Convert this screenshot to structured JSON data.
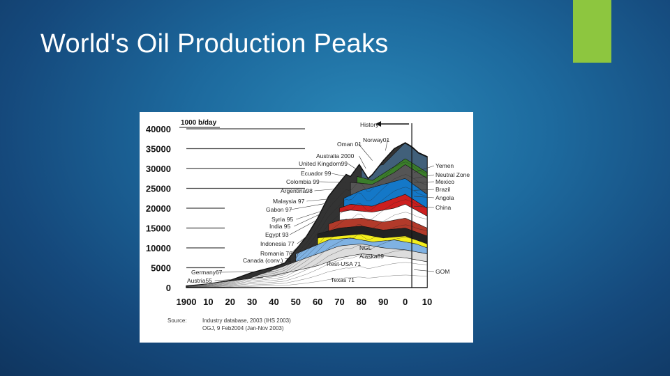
{
  "slide": {
    "title": "World's Oil Production Peaks",
    "accent_color": "#8dc63f"
  },
  "chart_data": {
    "type": "area",
    "ylabel": "1000 b/day",
    "ylim": [
      0,
      40000
    ],
    "yticks": [
      "0",
      "5000",
      "10000",
      "15000",
      "20000",
      "25000",
      "30000",
      "35000",
      "40000"
    ],
    "ytick_values": [
      0,
      5000,
      10000,
      15000,
      20000,
      25000,
      30000,
      35000,
      40000
    ],
    "xlim": [
      1900,
      2010
    ],
    "xticks": [
      "1900",
      "10",
      "20",
      "30",
      "40",
      "50",
      "60",
      "70",
      "80",
      "90",
      "0",
      "10"
    ],
    "xtick_values": [
      1900,
      1910,
      1920,
      1930,
      1940,
      1950,
      1960,
      1970,
      1980,
      1990,
      2000,
      2010
    ],
    "history_label": "History",
    "history_end": 2003,
    "total_x": [
      1900,
      1910,
      1920,
      1930,
      1940,
      1945,
      1950,
      1955,
      1960,
      1965,
      1970,
      1973,
      1975,
      1979,
      1983,
      1985,
      1990,
      1995,
      2000,
      2003,
      2006,
      2010
    ],
    "total_y": [
      400,
      900,
      1800,
      3800,
      5200,
      6200,
      9500,
      13000,
      17500,
      23000,
      26500,
      28500,
      28000,
      31000,
      27500,
      28500,
      32000,
      35000,
      36500,
      35500,
      34000,
      33000
    ],
    "layers": [
      {
        "x": [
          1900,
          1940,
          1960,
          1970,
          1980,
          1990,
          2000,
          2010
        ],
        "y": [
          300,
          3000,
          5500,
          7500,
          8500,
          8000,
          7500,
          6500
        ],
        "color": "#ffffff"
      },
      {
        "x": [
          1920,
          1950,
          1970,
          1980,
          1990,
          2000,
          2010
        ],
        "y": [
          600,
          6500,
          10500,
          11000,
          10000,
          9500,
          8500
        ],
        "color": "#dddddd"
      },
      {
        "x": [
          1950,
          1965,
          1975,
          1985,
          1995,
          2005,
          2010
        ],
        "y": [
          8500,
          12000,
          12500,
          11500,
          12000,
          11000,
          10000
        ],
        "color": "#7fb2e3"
      },
      {
        "x": [
          1960,
          1970,
          1980,
          1990,
          2000,
          2005,
          2010
        ],
        "y": [
          12500,
          13000,
          13500,
          12500,
          13000,
          12000,
          11000
        ],
        "color": "#f4ef1d"
      },
      {
        "x": [
          1960,
          1970,
          1980,
          1990,
          2000,
          2010
        ],
        "y": [
          13500,
          15000,
          15500,
          14500,
          15000,
          13000
        ],
        "color": "#222222"
      },
      {
        "x": [
          1965,
          1970,
          1980,
          1990,
          2000,
          2010
        ],
        "y": [
          16000,
          17000,
          17500,
          16500,
          17500,
          15000
        ],
        "color": "#b23a2a"
      },
      {
        "x": [
          1970,
          1975,
          1985,
          1995,
          2000,
          2010
        ],
        "y": [
          19000,
          19500,
          19000,
          20000,
          21000,
          18000
        ],
        "color": "#ffffff"
      },
      {
        "x": [
          1970,
          1975,
          1985,
          1995,
          2000,
          2010
        ],
        "y": [
          20000,
          21000,
          20500,
          22500,
          23500,
          20000
        ],
        "color": "#cc1f1f"
      },
      {
        "x": [
          1972,
          1980,
          1990,
          2000,
          2010
        ],
        "y": [
          22500,
          24500,
          26000,
          27500,
          23500
        ],
        "color": "#1478c8"
      },
      {
        "x": [
          1975,
          1985,
          1995,
          2000,
          2010
        ],
        "y": [
          26500,
          26000,
          29000,
          31000,
          27500
        ],
        "color": "#555555"
      },
      {
        "x": [
          1978,
          1985,
          1995,
          2000,
          2010
        ],
        "y": [
          28000,
          27000,
          30500,
          32500,
          29000
        ],
        "color": "#3a7d2a"
      },
      {
        "x": [
          1980,
          1990,
          2000,
          2010
        ],
        "y": [
          30000,
          31000,
          36500,
          33000
        ],
        "color": "#41607a"
      }
    ],
    "left_annotations": [
      "Oman 01",
      "Norway01",
      "Australia 2000",
      "United Kingdom99",
      "Ecuador 99",
      "Colombia 99",
      "Argentina98",
      "Malaysia 97",
      "Gabon 97",
      "Syria 95",
      "India 95",
      "Egypt 93",
      "Indonesia 77",
      "Romania 76",
      "Canada (conv.) 74",
      "Germany67",
      "Austria55"
    ],
    "center_annotations": [
      "NGL",
      "Alaska89",
      "Rest-USA 71",
      "Texas 71"
    ],
    "right_annotations": [
      "Yemen",
      "Neutral Zone",
      "Mexico",
      "Brazil",
      "Angola",
      "China",
      "GOM"
    ],
    "source_label": "Source:",
    "source_lines": [
      "Industry database, 2003 (IHS 2003)",
      "OGJ, 9 Feb2004 (Jan-Nov 2003)"
    ]
  }
}
